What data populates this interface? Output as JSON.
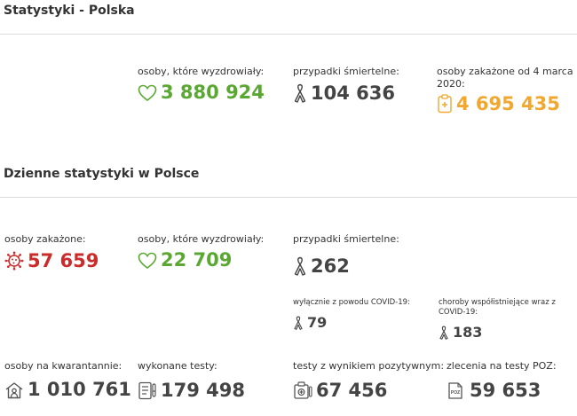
{
  "section1": {
    "title": "Statystyki - Polska",
    "recovered": {
      "label": "osoby, które wyzdrowiały:",
      "value": "3 880 924",
      "icon": "heart-icon",
      "color": "#5aa832"
    },
    "deaths": {
      "label": "przypadki śmiertelne:",
      "value": "104 636",
      "icon": "ribbon-icon",
      "color": "#444444"
    },
    "infected": {
      "label": "osoby zakażone od 4 marca 2020:",
      "value": "4 695 435",
      "icon": "medical-clipboard-icon",
      "color": "#f0a830"
    }
  },
  "section2": {
    "title": "Dzienne statystyki w Polsce",
    "infected": {
      "label": "osoby zakażone:",
      "value": "57 659",
      "icon": "virus-icon",
      "color": "#cc2b2b"
    },
    "recovered": {
      "label": "osoby, które wyzdrowiały:",
      "value": "22 709",
      "icon": "heart-icon",
      "color": "#5aa832"
    },
    "deaths": {
      "label": "przypadki śmiertelne:",
      "value": "262",
      "icon": "ribbon-icon"
    },
    "deaths_covid_only": {
      "label": "wyłącznie z powodu COVID-19:",
      "value": "79",
      "icon": "ribbon-icon"
    },
    "deaths_comorbid": {
      "label": "choroby współistniejące wraz z COVID-19:",
      "value": "183",
      "icon": "ribbon-icon"
    },
    "quarantine": {
      "label": "osoby na kwarantannie:",
      "value": "1 010 761",
      "icon": "house-person-icon"
    },
    "tests": {
      "label": "wykonane testy:",
      "value": "179 498",
      "icon": "test-list-icon"
    },
    "positive_tests": {
      "label": "testy z wynikiem pozytywnym:",
      "value": "67 456",
      "icon": "positive-test-icon"
    },
    "poz_orders": {
      "label": "zlecenia na testy POZ:",
      "value": "59 653",
      "icon": "poz-order-icon",
      "icon_text": "POZ"
    }
  }
}
